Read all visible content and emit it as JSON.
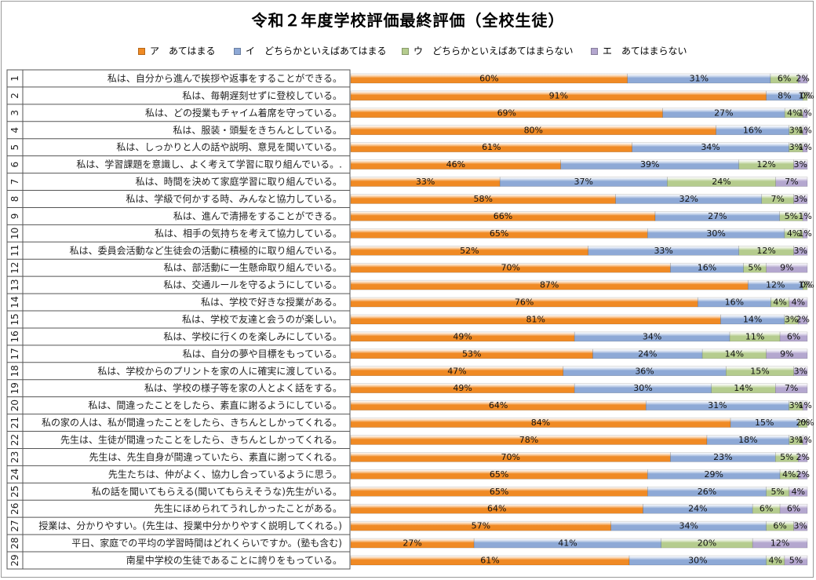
{
  "chart_data": {
    "type": "bar",
    "stacked": "percent",
    "orientation": "horizontal",
    "title": "令和２年度学校評価最終評価（全校生徒）",
    "legend_position": "top",
    "series": [
      {
        "name": "ア　あてはまる",
        "color": "#f08a24"
      },
      {
        "name": "イ　どちらかといえばあてはまる",
        "color": "#8ea9d6"
      },
      {
        "name": "ウ　どちらかといえばあてはまらない",
        "color": "#b5cc8e"
      },
      {
        "name": "エ　あてはまらない",
        "color": "#b4a7cf"
      }
    ],
    "categories": [
      {
        "no": "1",
        "label": "私は、自分から進んで挨拶や返事をすることができる。",
        "values": [
          60,
          31,
          6,
          2
        ]
      },
      {
        "no": "2",
        "label": "私は、毎朝遅刻せずに登校している。",
        "values": [
          91,
          8,
          1,
          0
        ]
      },
      {
        "no": "3",
        "label": "私は、どの授業もチャイム着席を守っている。",
        "values": [
          69,
          27,
          4,
          1
        ]
      },
      {
        "no": "4",
        "label": "私は、服装・頭髪をきちんとしている。",
        "values": [
          80,
          16,
          3,
          1
        ]
      },
      {
        "no": "5",
        "label": "私は、しっかりと人の話や説明、意見を聞いている。",
        "values": [
          61,
          34,
          3,
          1
        ]
      },
      {
        "no": "6",
        "label": "私は、学習課題を意識し、よく考えて学習に取り組んでいる。.",
        "values": [
          46,
          39,
          12,
          3
        ]
      },
      {
        "no": "7",
        "label": "私は、時間を決めて家庭学習に取り組んでいる。",
        "values": [
          33,
          37,
          24,
          7
        ]
      },
      {
        "no": "8",
        "label": "私は、学級で何かする時、みんなと協力している。",
        "values": [
          58,
          32,
          7,
          3
        ]
      },
      {
        "no": "9",
        "label": "私は、進んで清掃をすることができる。",
        "values": [
          66,
          27,
          5,
          1
        ]
      },
      {
        "no": "10",
        "label": "私は、相手の気持ちを考えて協力している。",
        "values": [
          65,
          30,
          4,
          1
        ]
      },
      {
        "no": "11",
        "label": "私は、委員会活動など生徒会の活動に積極的に取り組んでいる。",
        "values": [
          52,
          33,
          12,
          3
        ]
      },
      {
        "no": "12",
        "label": "私は、部活動に一生懸命取り組んでいる。",
        "values": [
          70,
          16,
          5,
          9
        ]
      },
      {
        "no": "13",
        "label": "私は、交通ルールを守るようにしている。",
        "values": [
          87,
          12,
          1,
          0
        ]
      },
      {
        "no": "14",
        "label": "私は、学校で好きな授業がある。",
        "values": [
          76,
          16,
          4,
          4
        ]
      },
      {
        "no": "15",
        "label": "私は、学校で友達と会うのが楽しい。",
        "values": [
          81,
          14,
          3,
          2
        ]
      },
      {
        "no": "16",
        "label": "私は、学校に行くのを楽しみにしている。",
        "values": [
          49,
          34,
          11,
          6
        ]
      },
      {
        "no": "17",
        "label": "私は、自分の夢や目標をもっている。",
        "values": [
          53,
          24,
          14,
          9
        ]
      },
      {
        "no": "18",
        "label": "私は、学校からのプリントを家の人に確実に渡している。",
        "values": [
          47,
          36,
          15,
          3
        ]
      },
      {
        "no": "19",
        "label": "私は、学校の様子等を家の人とよく話をする。",
        "values": [
          49,
          30,
          14,
          7
        ]
      },
      {
        "no": "20",
        "label": "私は、間違ったことをしたら、素直に謝るようにしている。",
        "values": [
          64,
          31,
          3,
          1
        ]
      },
      {
        "no": "21",
        "label": "私の家の人は、私が間違ったことをしたら、きちんとしかってくれる。",
        "values": [
          84,
          15,
          2,
          0
        ]
      },
      {
        "no": "22",
        "label": "先生は、生徒が間違ったことをしたら、きちんとしかってくれる。",
        "values": [
          78,
          18,
          3,
          1
        ]
      },
      {
        "no": "23",
        "label": "先生は、先生自身が間違っていたら、素直に謝ってくれる。",
        "values": [
          70,
          23,
          5,
          2
        ]
      },
      {
        "no": "24",
        "label": "先生たちは、仲がよく、協力し合っているように思う。",
        "values": [
          65,
          29,
          4,
          2
        ]
      },
      {
        "no": "25",
        "label": "私の話を聞いてもらえる(聞いてもらえそうな)先生がいる。",
        "values": [
          65,
          26,
          5,
          4
        ]
      },
      {
        "no": "26",
        "label": "先生にほめられてうれしかったことがある。",
        "values": [
          64,
          24,
          6,
          6
        ]
      },
      {
        "no": "27",
        "label": "授業は、分かりやすい。(先生は、授業中分かりやすく説明してくれる。)",
        "values": [
          57,
          34,
          6,
          3
        ]
      },
      {
        "no": "28",
        "label": "平日、家庭での平均の学習時間はどれくらいですか。(塾も含む)",
        "values": [
          27,
          41,
          20,
          12
        ]
      },
      {
        "no": "29",
        "label": "南星中学校の生徒であることに誇りをもっている。",
        "values": [
          61,
          30,
          4,
          5
        ]
      }
    ]
  }
}
